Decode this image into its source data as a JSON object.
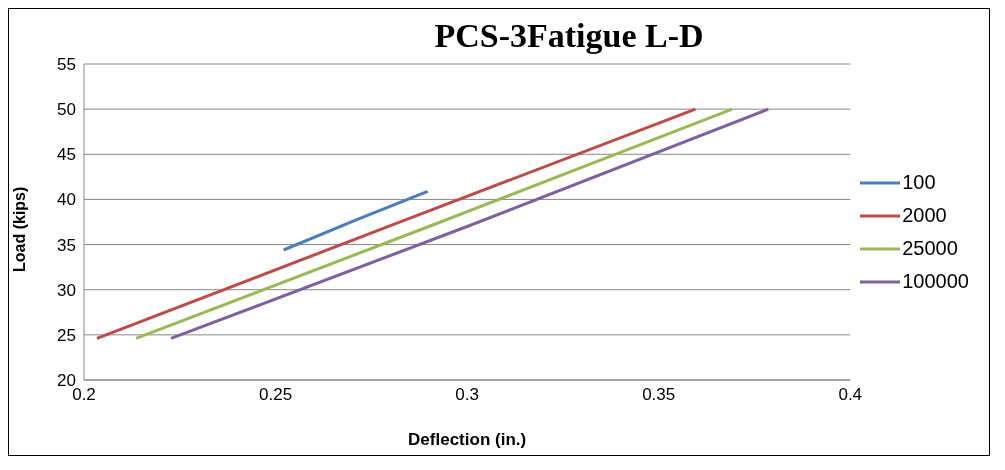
{
  "chart_data": {
    "type": "line",
    "title": "PCS-3Fatigue L-D",
    "xlabel": "Deflection (in.)",
    "ylabel": "Load (kips)",
    "series": [
      {
        "name": "100",
        "color": "#4a7ebb",
        "x": [
          0.2521,
          0.2709,
          0.2897
        ],
        "values": [
          34.4,
          37.7,
          40.9
        ]
      },
      {
        "name": "2000",
        "color": "#be4b48",
        "x": [
          0.2034,
          0.28,
          0.3596
        ],
        "values": [
          24.6,
          37.1,
          50
        ]
      },
      {
        "name": "25000",
        "color": "#98b954",
        "x": [
          0.2136,
          0.29,
          0.3692
        ],
        "values": [
          24.6,
          37.0,
          50
        ]
      },
      {
        "name": "100000",
        "color": "#7d60a0",
        "x": [
          0.2227,
          0.3,
          0.3786
        ],
        "values": [
          24.6,
          37.0,
          50
        ]
      }
    ],
    "xlim": [
      0.2,
      0.4
    ],
    "xticks": [
      0.2,
      0.25,
      0.3,
      0.35,
      0.4
    ],
    "ylim": [
      20,
      55
    ],
    "yticks": [
      20,
      25,
      30,
      35,
      40,
      45,
      50,
      55
    ],
    "grid": "y",
    "legend": "right",
    "marker": "none",
    "line_style": "solid"
  }
}
